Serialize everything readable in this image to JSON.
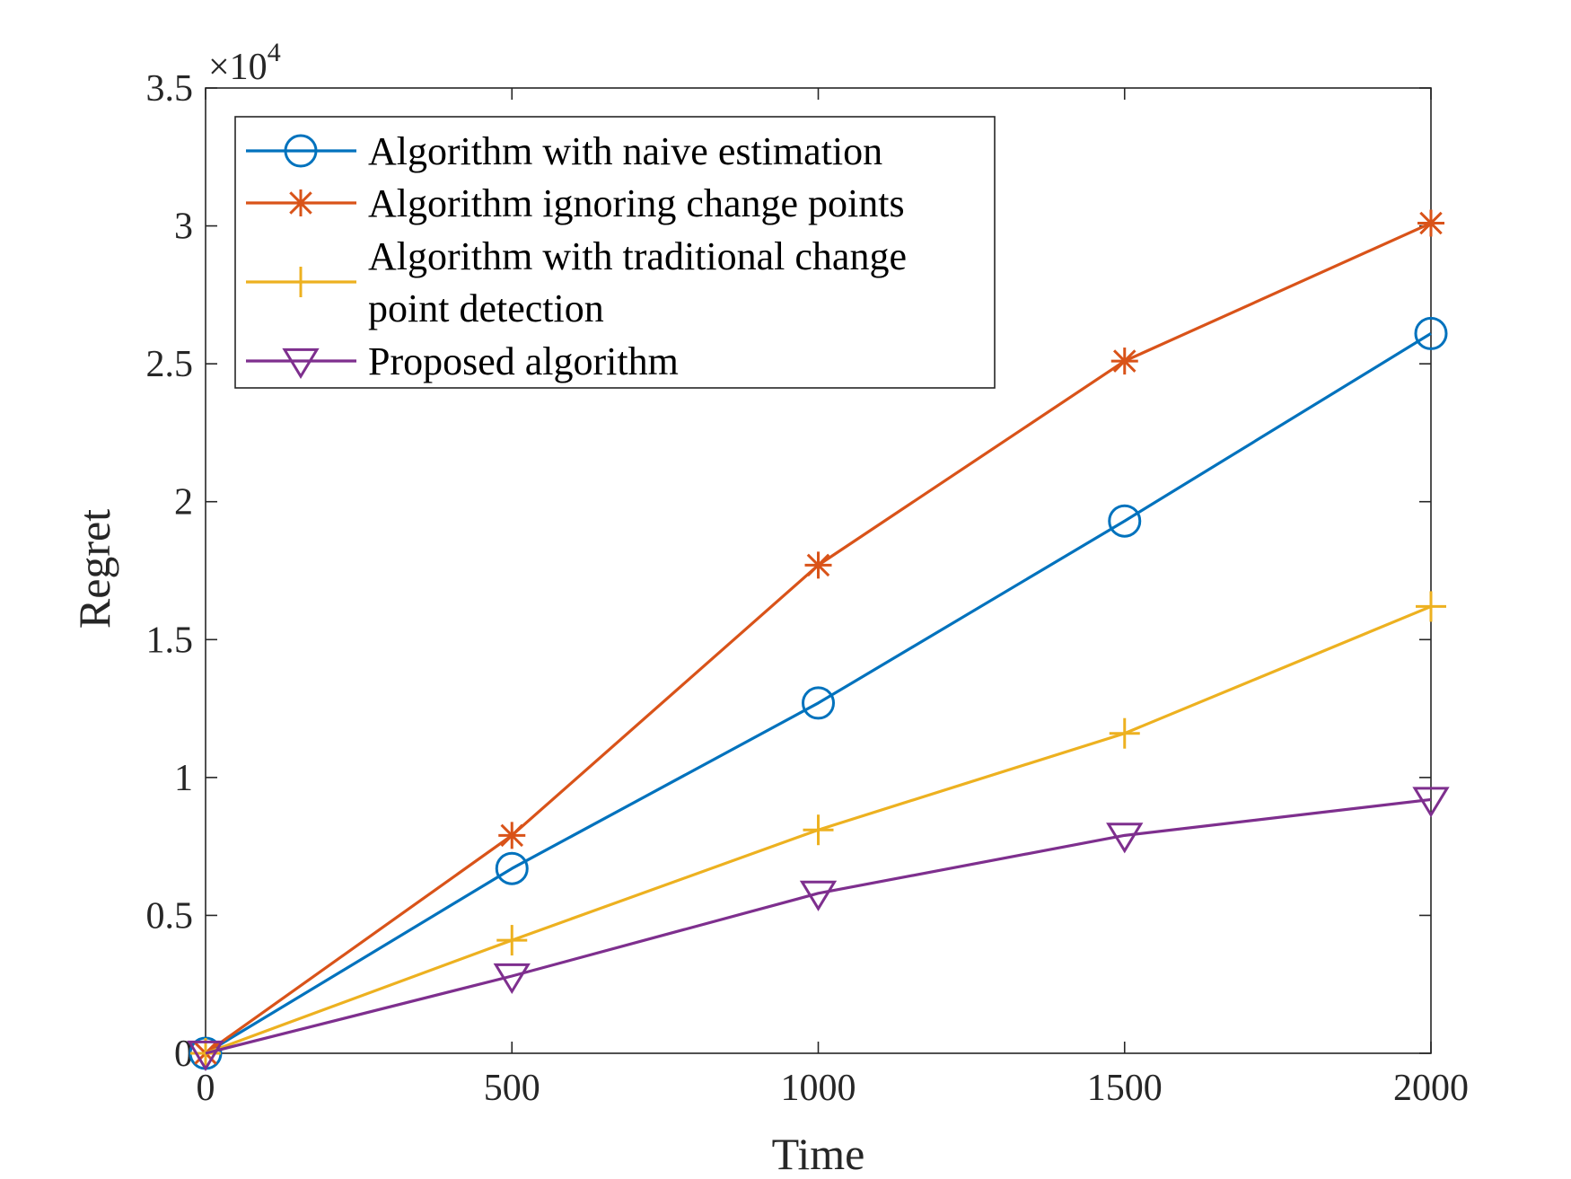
{
  "chart_data": {
    "type": "line",
    "title": "",
    "xlabel": "Time",
    "ylabel": "Regret",
    "x": [
      0,
      500,
      1000,
      1500,
      2000
    ],
    "xlim": [
      0,
      2000
    ],
    "ylim": [
      0,
      35000
    ],
    "xticks": [
      0,
      500,
      1000,
      1500,
      2000
    ],
    "xtick_labels": [
      "0",
      "500",
      "1000",
      "1500",
      "2000"
    ],
    "yticks": [
      0,
      5000,
      10000,
      15000,
      20000,
      25000,
      30000,
      35000
    ],
    "ytick_labels": [
      "0",
      "0.5",
      "1",
      "1.5",
      "2",
      "2.5",
      "3",
      "3.5"
    ],
    "y_exponent": {
      "prefix": "×10",
      "power": "4"
    },
    "grid": false,
    "legend_position": "top-left",
    "series": [
      {
        "name": "Algorithm with naive estimation",
        "legend_lines": [
          "Algorithm with naive estimation"
        ],
        "color": "#0072BD",
        "marker": "circle",
        "values": [
          0,
          6700,
          12700,
          19300,
          26100
        ]
      },
      {
        "name": "Algorithm ignoring change points",
        "legend_lines": [
          "Algorithm ignoring change points"
        ],
        "color": "#D95319",
        "marker": "asterisk",
        "values": [
          0,
          7900,
          17700,
          25100,
          30100
        ]
      },
      {
        "name": "Algorithm with traditional change point detection",
        "legend_lines": [
          "Algorithm with traditional change",
          "point detection"
        ],
        "color": "#EDB120",
        "marker": "plus",
        "values": [
          0,
          4100,
          8100,
          11600,
          16200
        ]
      },
      {
        "name": "Proposed algorithm",
        "legend_lines": [
          "Proposed algorithm"
        ],
        "color": "#7E2F8E",
        "marker": "triangle-down",
        "values": [
          0,
          2800,
          5800,
          7900,
          9200
        ]
      }
    ]
  }
}
